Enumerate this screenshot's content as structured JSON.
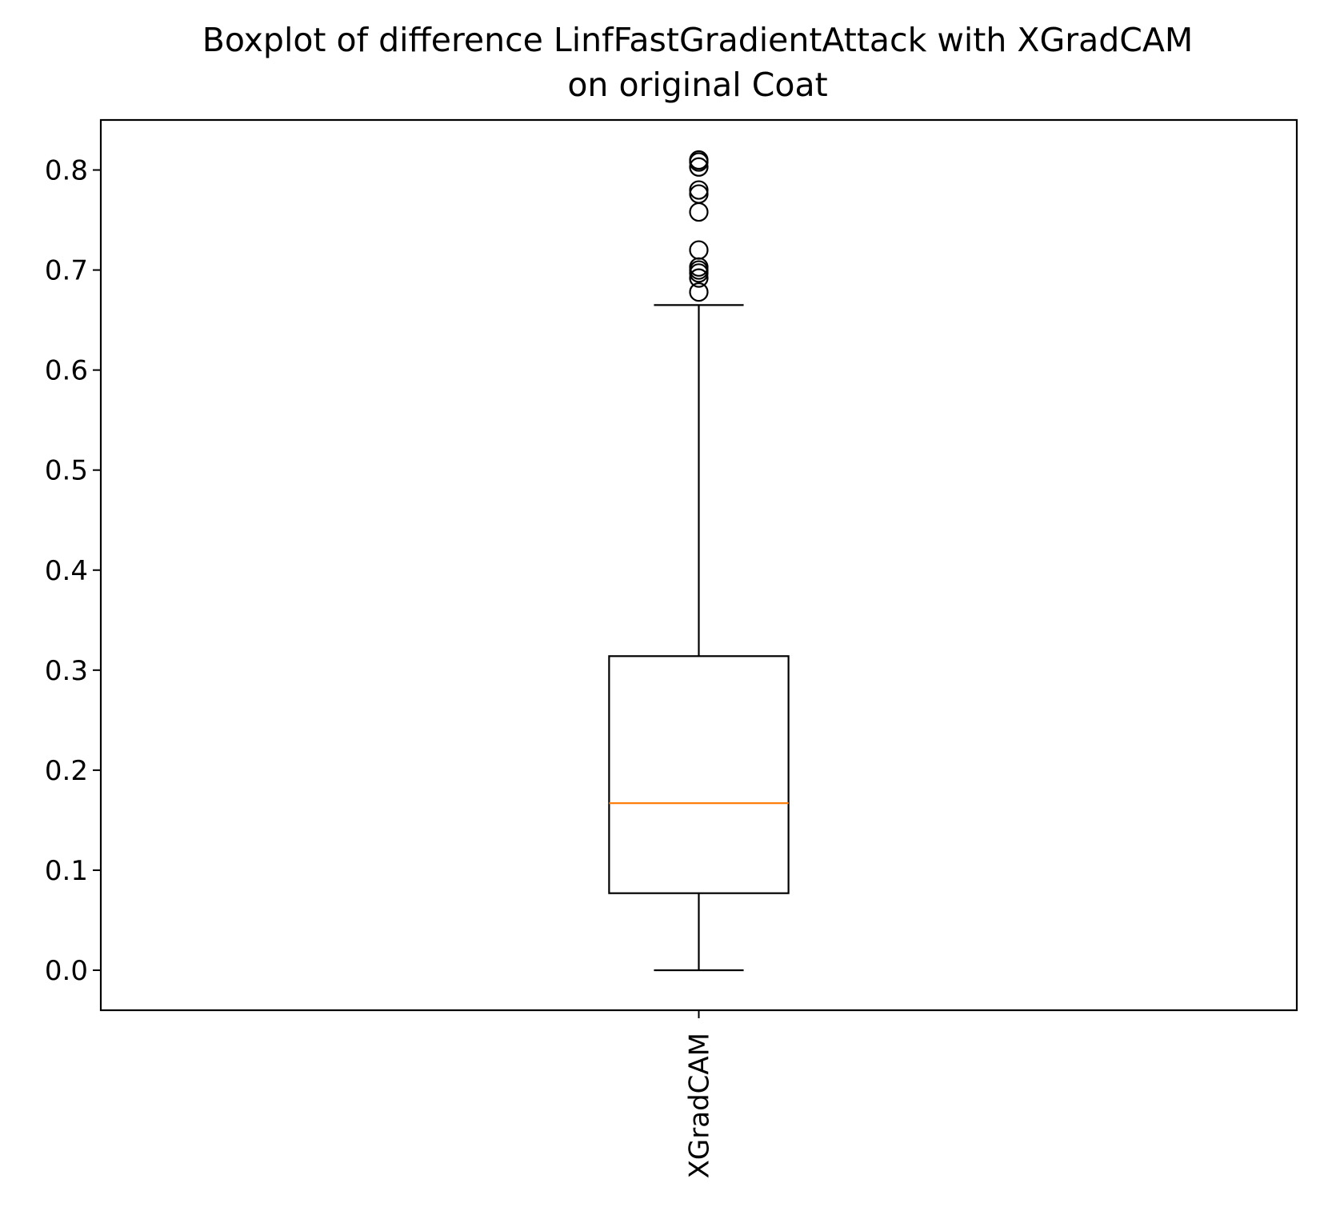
{
  "chart_data": {
    "type": "boxplot",
    "title_line1": "Boxplot of difference LinfFastGradientAttack with XGradCAM",
    "title_line2": "on original Coat",
    "xlabel": "",
    "ylabel": "",
    "categories": [
      "XGradCAM"
    ],
    "ylim": [
      -0.04,
      0.85
    ],
    "yticks": [
      0.0,
      0.1,
      0.2,
      0.3,
      0.4,
      0.5,
      0.6,
      0.7,
      0.8
    ],
    "ytick_labels": [
      "0.0",
      "0.1",
      "0.2",
      "0.3",
      "0.4",
      "0.5",
      "0.6",
      "0.7",
      "0.8"
    ],
    "grid": false,
    "boxes": [
      {
        "name": "XGradCAM",
        "whisker_low": 0.0,
        "q1": 0.077,
        "median": 0.167,
        "q3": 0.314,
        "whisker_high": 0.665,
        "outliers": [
          0.678,
          0.692,
          0.697,
          0.7,
          0.703,
          0.72,
          0.758,
          0.776,
          0.78,
          0.803,
          0.808,
          0.81
        ]
      }
    ],
    "colors": {
      "box": "#000000",
      "median": "#ff7f0e",
      "outlier": "#000000"
    }
  }
}
